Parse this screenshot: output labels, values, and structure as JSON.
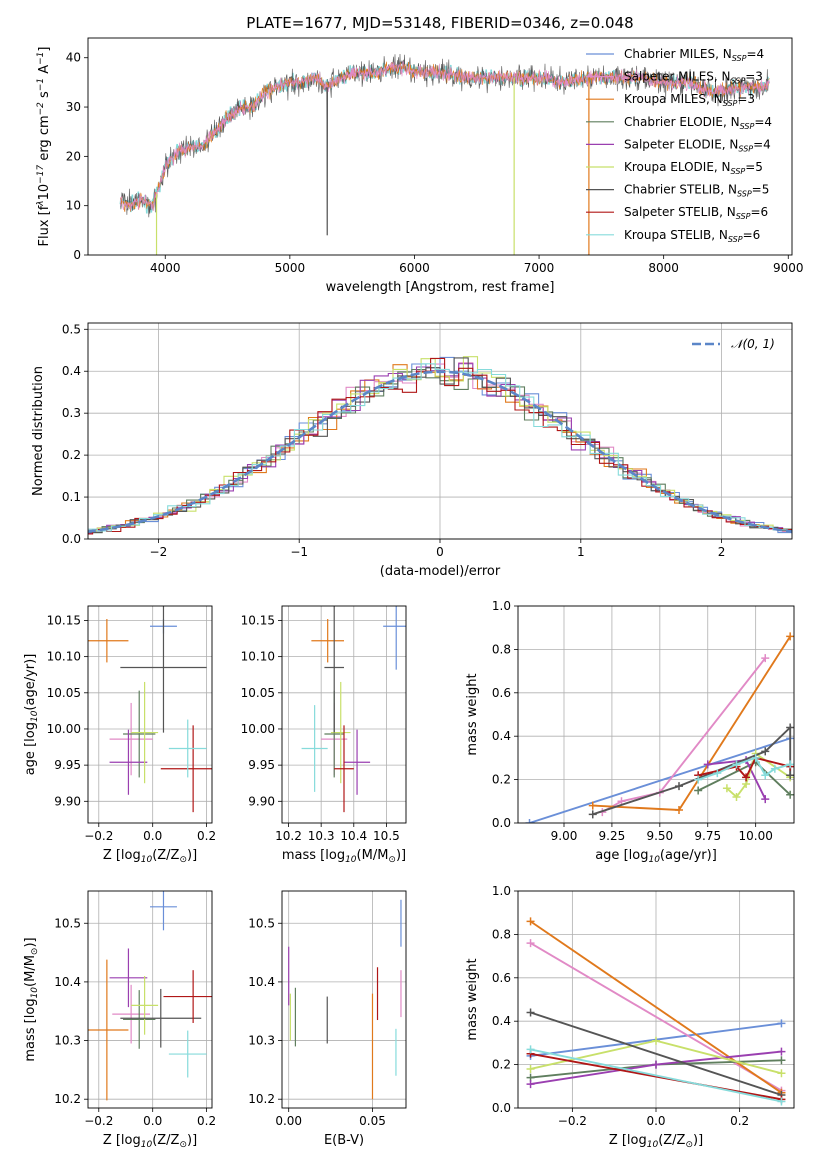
{
  "figure_title": "PLATE=1677, MJD=53148, FIBERID=0346, z=0.048",
  "colors": {
    "Chabrier MILES": "#6a8fd8",
    "Salpeter MILES": "#e18ac6",
    "Kroupa MILES": "#e0791c",
    "Chabrier ELODIE": "#5f7e5e",
    "Salpeter ELODIE": "#9a3fb0",
    "Kroupa ELODIE": "#c8e06a",
    "Chabrier STELIB": "#555555",
    "Salpeter STELIB": "#b01717",
    "Kroupa STELIB": "#86dbdb",
    "normal": "#5b86c8"
  },
  "chart_data": [
    {
      "id": "spectrum",
      "type": "line",
      "xlabel": "wavelength [Angstrom, rest frame]",
      "ylabel_parts": [
        "Flux [f",
        "λ",
        "10",
        "−17",
        " erg cm",
        "−2",
        " s",
        "−1",
        " A",
        "−1",
        "]"
      ],
      "xlim": [
        3380,
        9030
      ],
      "ylim": [
        0,
        44
      ],
      "xticks": [
        4000,
        5000,
        6000,
        7000,
        8000,
        9000
      ],
      "yticks": [
        0,
        10,
        20,
        30,
        40
      ],
      "continuum": {
        "x": [
          3640,
          3700,
          3800,
          3900,
          3950,
          4000,
          4100,
          4200,
          4300,
          4400,
          4500,
          4600,
          4700,
          4800,
          4900,
          5000,
          5100,
          5200,
          5300,
          5400,
          5500,
          5600,
          5700,
          5800,
          5900,
          6000,
          6200,
          6400,
          6600,
          6800,
          7000,
          7200,
          7400,
          7600,
          7800,
          8000,
          8200,
          8400,
          8600,
          8800,
          8850
        ],
        "y": [
          11,
          10,
          11,
          10,
          14,
          18,
          21,
          22,
          22,
          25,
          28,
          30,
          30,
          33,
          34,
          35,
          35,
          36,
          34,
          36,
          37,
          37,
          37,
          38,
          38,
          37,
          37,
          36,
          36,
          36,
          36,
          35,
          36,
          36,
          36,
          35,
          35,
          33,
          34,
          34,
          35
        ]
      },
      "dips": [
        {
          "x": 3930,
          "y": 0
        },
        {
          "x": 5300,
          "y": 4
        },
        {
          "x": 6800,
          "y": 0
        },
        {
          "x": 7400,
          "y": 0
        }
      ],
      "legend": [
        {
          "name": "Chabrier MILES, N",
          "sub": "SSP",
          "tail": "=4"
        },
        {
          "name": "Salpeter MILES, N",
          "sub": "SSP",
          "tail": "=3"
        },
        {
          "name": "Kroupa MILES, N",
          "sub": "SSP",
          "tail": "=3"
        },
        {
          "name": "Chabrier ELODIE, N",
          "sub": "SSP",
          "tail": "=4"
        },
        {
          "name": "Salpeter ELODIE, N",
          "sub": "SSP",
          "tail": "=4"
        },
        {
          "name": "Kroupa ELODIE, N",
          "sub": "SSP",
          "tail": "=5"
        },
        {
          "name": "Chabrier STELIB, N",
          "sub": "SSP",
          "tail": "=5"
        },
        {
          "name": "Salpeter STELIB, N",
          "sub": "SSP",
          "tail": "=6"
        },
        {
          "name": "Kroupa STELIB, N",
          "sub": "SSP",
          "tail": "=6"
        }
      ]
    },
    {
      "id": "residuals",
      "type": "histogram",
      "xlabel": "(data-model)/error",
      "ylabel": "Normed distribution",
      "xlim": [
        -2.5,
        2.5
      ],
      "ylim": [
        0,
        0.515
      ],
      "xticks": [
        -2,
        -1,
        0,
        1,
        2
      ],
      "xtick_labels": [
        "−2",
        "−1",
        "0",
        "1",
        "2"
      ],
      "yticks": [
        0,
        0.1,
        0.2,
        0.3,
        0.4,
        0.5
      ],
      "ytick_labels": [
        "0.0",
        "0.1",
        "0.2",
        "0.3",
        "0.4",
        "0.5"
      ],
      "bin_width": 0.1,
      "normal_label": "𝒩(0, 1)"
    },
    {
      "id": "age-vs-Z",
      "type": "errorbar",
      "xlabel_parts": [
        "Z [log",
        "10",
        "(Z/Z",
        "⊙",
        ")]"
      ],
      "ylabel_parts": [
        "age  [log",
        "10",
        "(age/yr)]"
      ],
      "xlim": [
        -0.24,
        0.22
      ],
      "ylim": [
        9.87,
        10.17
      ],
      "xticks": [
        -0.2,
        0.0,
        0.2
      ],
      "xtick_labels": [
        "−0.2",
        "0.0",
        "0.2"
      ],
      "yticks": [
        9.9,
        9.95,
        10.0,
        10.05,
        10.1,
        10.15
      ],
      "ytick_labels": [
        "9.90",
        "9.95",
        "10.00",
        "10.05",
        "10.10",
        "10.15"
      ],
      "points": [
        {
          "model": "Chabrier MILES",
          "x": 0.04,
          "y": 10.142,
          "xerr": 0.05,
          "yerr": 0.01
        },
        {
          "model": "Salpeter MILES",
          "x": -0.08,
          "y": 9.986,
          "xerr": 0.08,
          "yerr": 0.05
        },
        {
          "model": "Kroupa MILES",
          "x": -0.17,
          "y": 10.122,
          "xerr": 0.08,
          "yerr": 0.03
        },
        {
          "model": "Chabrier ELODIE",
          "x": -0.05,
          "y": 9.993,
          "xerr": 0.06,
          "yerr": 0.06
        },
        {
          "model": "Salpeter ELODIE",
          "x": -0.09,
          "y": 9.954,
          "xerr": 0.07,
          "yerr": 0.045
        },
        {
          "model": "Kroupa ELODIE",
          "x": -0.03,
          "y": 9.995,
          "xerr": 0.05,
          "yerr": 0.07
        },
        {
          "model": "Chabrier STELIB",
          "x": 0.04,
          "y": 10.085,
          "xerr": 0.16,
          "yerr": 0.09
        },
        {
          "model": "Salpeter STELIB",
          "x": 0.15,
          "y": 9.945,
          "xerr": 0.12,
          "yerr": 0.06
        },
        {
          "model": "Kroupa STELIB",
          "x": 0.13,
          "y": 9.973,
          "xerr": 0.07,
          "yerr": 0.04
        }
      ]
    },
    {
      "id": "age-vs-mass",
      "type": "errorbar",
      "xlabel_parts": [
        "mass [log",
        "10",
        "(M/M",
        "⊙",
        ")]"
      ],
      "ylabel_parts": [],
      "xlim": [
        10.18,
        10.56
      ],
      "ylim": [
        9.87,
        10.17
      ],
      "xticks": [
        10.2,
        10.3,
        10.4,
        10.5
      ],
      "xtick_labels": [
        "10.2",
        "10.3",
        "10.4",
        "10.5"
      ],
      "yticks": [
        9.9,
        9.95,
        10.0,
        10.05,
        10.1,
        10.15
      ],
      "ytick_labels": [
        "9.90",
        "9.95",
        "10.00",
        "10.05",
        "10.10",
        "10.15"
      ],
      "points": [
        {
          "model": "Chabrier MILES",
          "x": 10.53,
          "y": 10.142,
          "xerr": 0.04,
          "yerr": 0.06
        },
        {
          "model": "Salpeter MILES",
          "x": 10.34,
          "y": 9.986,
          "xerr": 0.04,
          "yerr": 0.05
        },
        {
          "model": "Kroupa MILES",
          "x": 10.32,
          "y": 10.122,
          "xerr": 0.05,
          "yerr": 0.03
        },
        {
          "model": "Chabrier ELODIE",
          "x": 10.34,
          "y": 9.993,
          "xerr": 0.03,
          "yerr": 0.06
        },
        {
          "model": "Salpeter ELODIE",
          "x": 10.41,
          "y": 9.954,
          "xerr": 0.04,
          "yerr": 0.045
        },
        {
          "model": "Kroupa ELODIE",
          "x": 10.36,
          "y": 9.995,
          "xerr": 0.03,
          "yerr": 0.07
        },
        {
          "model": "Chabrier STELIB",
          "x": 10.34,
          "y": 10.085,
          "xerr": 0.03,
          "yerr": 0.09
        },
        {
          "model": "Salpeter STELIB",
          "x": 10.37,
          "y": 9.945,
          "xerr": 0.03,
          "yerr": 0.06
        },
        {
          "model": "Kroupa STELIB",
          "x": 10.28,
          "y": 9.973,
          "xerr": 0.04,
          "yerr": 0.06
        }
      ]
    },
    {
      "id": "mass-weight-vs-age",
      "type": "line",
      "xlabel_parts": [
        "age  [log",
        "10",
        "(age/yr)]"
      ],
      "ylabel": "mass weight",
      "xlim": [
        8.76,
        10.2
      ],
      "ylim": [
        0,
        1.0
      ],
      "xticks": [
        9.0,
        9.25,
        9.5,
        9.75,
        10.0
      ],
      "xtick_labels": [
        "9.00",
        "9.25",
        "9.50",
        "9.75",
        "10.00"
      ],
      "yticks": [
        0,
        0.2,
        0.4,
        0.6,
        0.8,
        1.0
      ],
      "ytick_labels": [
        "0.0",
        "0.2",
        "0.4",
        "0.6",
        "0.8",
        "1.0"
      ],
      "series": [
        {
          "model": "Chabrier MILES",
          "x": [
            8.82,
            10.18
          ],
          "y": [
            0.0,
            0.39
          ]
        },
        {
          "model": "Salpeter MILES",
          "x": [
            9.2,
            9.3,
            9.5,
            10.05
          ],
          "y": [
            0.05,
            0.1,
            0.14,
            0.76
          ]
        },
        {
          "model": "Kroupa MILES",
          "x": [
            9.15,
            9.6,
            10.18
          ],
          "y": [
            0.08,
            0.06,
            0.86
          ]
        },
        {
          "model": "Chabrier ELODIE",
          "x": [
            9.7,
            10.0,
            10.18
          ],
          "y": [
            0.15,
            0.28,
            0.13
          ]
        },
        {
          "model": "Salpeter ELODIE",
          "x": [
            9.75,
            9.95,
            10.05
          ],
          "y": [
            0.27,
            0.29,
            0.11
          ]
        },
        {
          "model": "Kroupa ELODIE",
          "x": [
            9.85,
            9.9,
            9.95,
            10.0,
            10.18
          ],
          "y": [
            0.16,
            0.12,
            0.18,
            0.32,
            0.21
          ]
        },
        {
          "model": "Chabrier STELIB",
          "x": [
            9.15,
            9.6,
            10.05,
            10.18,
            10.18
          ],
          "y": [
            0.04,
            0.17,
            0.33,
            0.44,
            0.22
          ]
        },
        {
          "model": "Salpeter STELIB",
          "x": [
            9.7,
            9.9,
            9.95,
            10.0,
            10.18
          ],
          "y": [
            0.22,
            0.26,
            0.21,
            0.3,
            0.26
          ]
        },
        {
          "model": "Kroupa STELIB",
          "x": [
            9.7,
            9.8,
            9.9,
            10.0,
            10.05,
            10.1,
            10.18
          ],
          "y": [
            0.2,
            0.23,
            0.27,
            0.3,
            0.22,
            0.25,
            0.27
          ]
        }
      ]
    },
    {
      "id": "mass-vs-Z",
      "type": "errorbar",
      "xlabel_parts": [
        "Z [log",
        "10",
        "(Z/Z",
        "⊙",
        ")]"
      ],
      "ylabel_parts": [
        "mass [log",
        "10",
        "(M/M",
        "⊙",
        ")]"
      ],
      "xlim": [
        -0.24,
        0.22
      ],
      "ylim": [
        10.185,
        10.555
      ],
      "xticks": [
        -0.2,
        0.0,
        0.2
      ],
      "xtick_labels": [
        "−0.2",
        "0.0",
        "0.2"
      ],
      "yticks": [
        10.2,
        10.3,
        10.4,
        10.5
      ],
      "ytick_labels": [
        "10.2",
        "10.3",
        "10.4",
        "10.5"
      ],
      "points": [
        {
          "model": "Chabrier MILES",
          "x": 0.04,
          "y": 10.528,
          "xerr": 0.05,
          "yerr": 0.04
        },
        {
          "model": "Salpeter MILES",
          "x": -0.08,
          "y": 10.345,
          "xerr": 0.07,
          "yerr": 0.05
        },
        {
          "model": "Kroupa MILES",
          "x": -0.17,
          "y": 10.318,
          "xerr": 0.08,
          "yerr": 0.12
        },
        {
          "model": "Chabrier ELODIE",
          "x": -0.05,
          "y": 10.336,
          "xerr": 0.06,
          "yerr": 0.05
        },
        {
          "model": "Salpeter ELODIE",
          "x": -0.09,
          "y": 10.407,
          "xerr": 0.07,
          "yerr": 0.05
        },
        {
          "model": "Kroupa ELODIE",
          "x": -0.03,
          "y": 10.36,
          "xerr": 0.05,
          "yerr": 0.05
        },
        {
          "model": "Chabrier STELIB",
          "x": 0.03,
          "y": 10.338,
          "xerr": 0.15,
          "yerr": 0.05
        },
        {
          "model": "Salpeter STELIB",
          "x": 0.15,
          "y": 10.375,
          "xerr": 0.11,
          "yerr": 0.045
        },
        {
          "model": "Kroupa STELIB",
          "x": 0.13,
          "y": 10.277,
          "xerr": 0.07,
          "yerr": 0.04
        }
      ]
    },
    {
      "id": "mass-vs-ebv",
      "type": "errorbar",
      "xlabel": "E(B-V)",
      "ylabel_parts": [],
      "xlim": [
        -0.004,
        0.07
      ],
      "ylim": [
        10.185,
        10.555
      ],
      "xticks": [
        0.0,
        0.05
      ],
      "xtick_labels": [
        "0.00",
        "0.05"
      ],
      "yticks": [
        10.2,
        10.3,
        10.4,
        10.5
      ],
      "ytick_labels": [
        "10.2",
        "10.3",
        "10.4",
        "10.5"
      ],
      "points": [
        {
          "model": "Chabrier MILES",
          "x": 0.067,
          "y": 10.5,
          "xerr": 0,
          "yerr": 0.04
        },
        {
          "model": "Salpeter MILES",
          "x": 0.067,
          "y": 10.38,
          "xerr": 0,
          "yerr": 0.04
        },
        {
          "model": "Kroupa MILES",
          "x": 0.05,
          "y": 10.29,
          "xerr": 0,
          "yerr": 0.09
        },
        {
          "model": "Chabrier ELODIE",
          "x": 0.004,
          "y": 10.34,
          "xerr": 0,
          "yerr": 0.05
        },
        {
          "model": "Salpeter ELODIE",
          "x": 0.0,
          "y": 10.41,
          "xerr": 0,
          "yerr": 0.05
        },
        {
          "model": "Kroupa ELODIE",
          "x": 0.001,
          "y": 10.34,
          "xerr": 0,
          "yerr": 0.04
        },
        {
          "model": "Chabrier STELIB",
          "x": 0.023,
          "y": 10.335,
          "xerr": 0,
          "yerr": 0.04
        },
        {
          "model": "Salpeter STELIB",
          "x": 0.053,
          "y": 10.38,
          "xerr": 0,
          "yerr": 0.045
        },
        {
          "model": "Kroupa STELIB",
          "x": 0.064,
          "y": 10.28,
          "xerr": 0,
          "yerr": 0.04
        }
      ]
    },
    {
      "id": "mass-weight-vs-Z",
      "type": "line",
      "xlabel_parts": [
        "Z [log",
        "10",
        "(Z/Z",
        "⊙",
        ")]"
      ],
      "ylabel": "mass weight",
      "xlim": [
        -0.33,
        0.33
      ],
      "ylim": [
        0,
        1.0
      ],
      "xticks": [
        -0.2,
        0.0,
        0.2
      ],
      "xtick_labels": [
        "−0.2",
        "0.0",
        "0.2"
      ],
      "yticks": [
        0,
        0.2,
        0.4,
        0.6,
        0.8,
        1.0
      ],
      "ytick_labels": [
        "0.0",
        "0.2",
        "0.4",
        "0.6",
        "0.8",
        "1.0"
      ],
      "series": [
        {
          "model": "Chabrier MILES",
          "x": [
            -0.3,
            0.3
          ],
          "y": [
            0.24,
            0.39
          ]
        },
        {
          "model": "Salpeter MILES",
          "x": [
            -0.3,
            0.3
          ],
          "y": [
            0.76,
            0.08
          ]
        },
        {
          "model": "Kroupa MILES",
          "x": [
            -0.3,
            0.3
          ],
          "y": [
            0.86,
            0.07
          ]
        },
        {
          "model": "Chabrier ELODIE",
          "x": [
            -0.3,
            0.0,
            0.3
          ],
          "y": [
            0.14,
            0.2,
            0.22
          ]
        },
        {
          "model": "Salpeter ELODIE",
          "x": [
            -0.3,
            0.0,
            0.3
          ],
          "y": [
            0.11,
            0.2,
            0.26
          ]
        },
        {
          "model": "Kroupa ELODIE",
          "x": [
            -0.3,
            0.0,
            0.3
          ],
          "y": [
            0.18,
            0.31,
            0.16
          ]
        },
        {
          "model": "Chabrier STELIB",
          "x": [
            -0.3,
            0.3
          ],
          "y": [
            0.44,
            0.06
          ]
        },
        {
          "model": "Salpeter STELIB",
          "x": [
            -0.3,
            0.3
          ],
          "y": [
            0.25,
            0.04
          ]
        },
        {
          "model": "Kroupa STELIB",
          "x": [
            -0.3,
            0.3
          ],
          "y": [
            0.27,
            0.03
          ]
        }
      ]
    }
  ]
}
